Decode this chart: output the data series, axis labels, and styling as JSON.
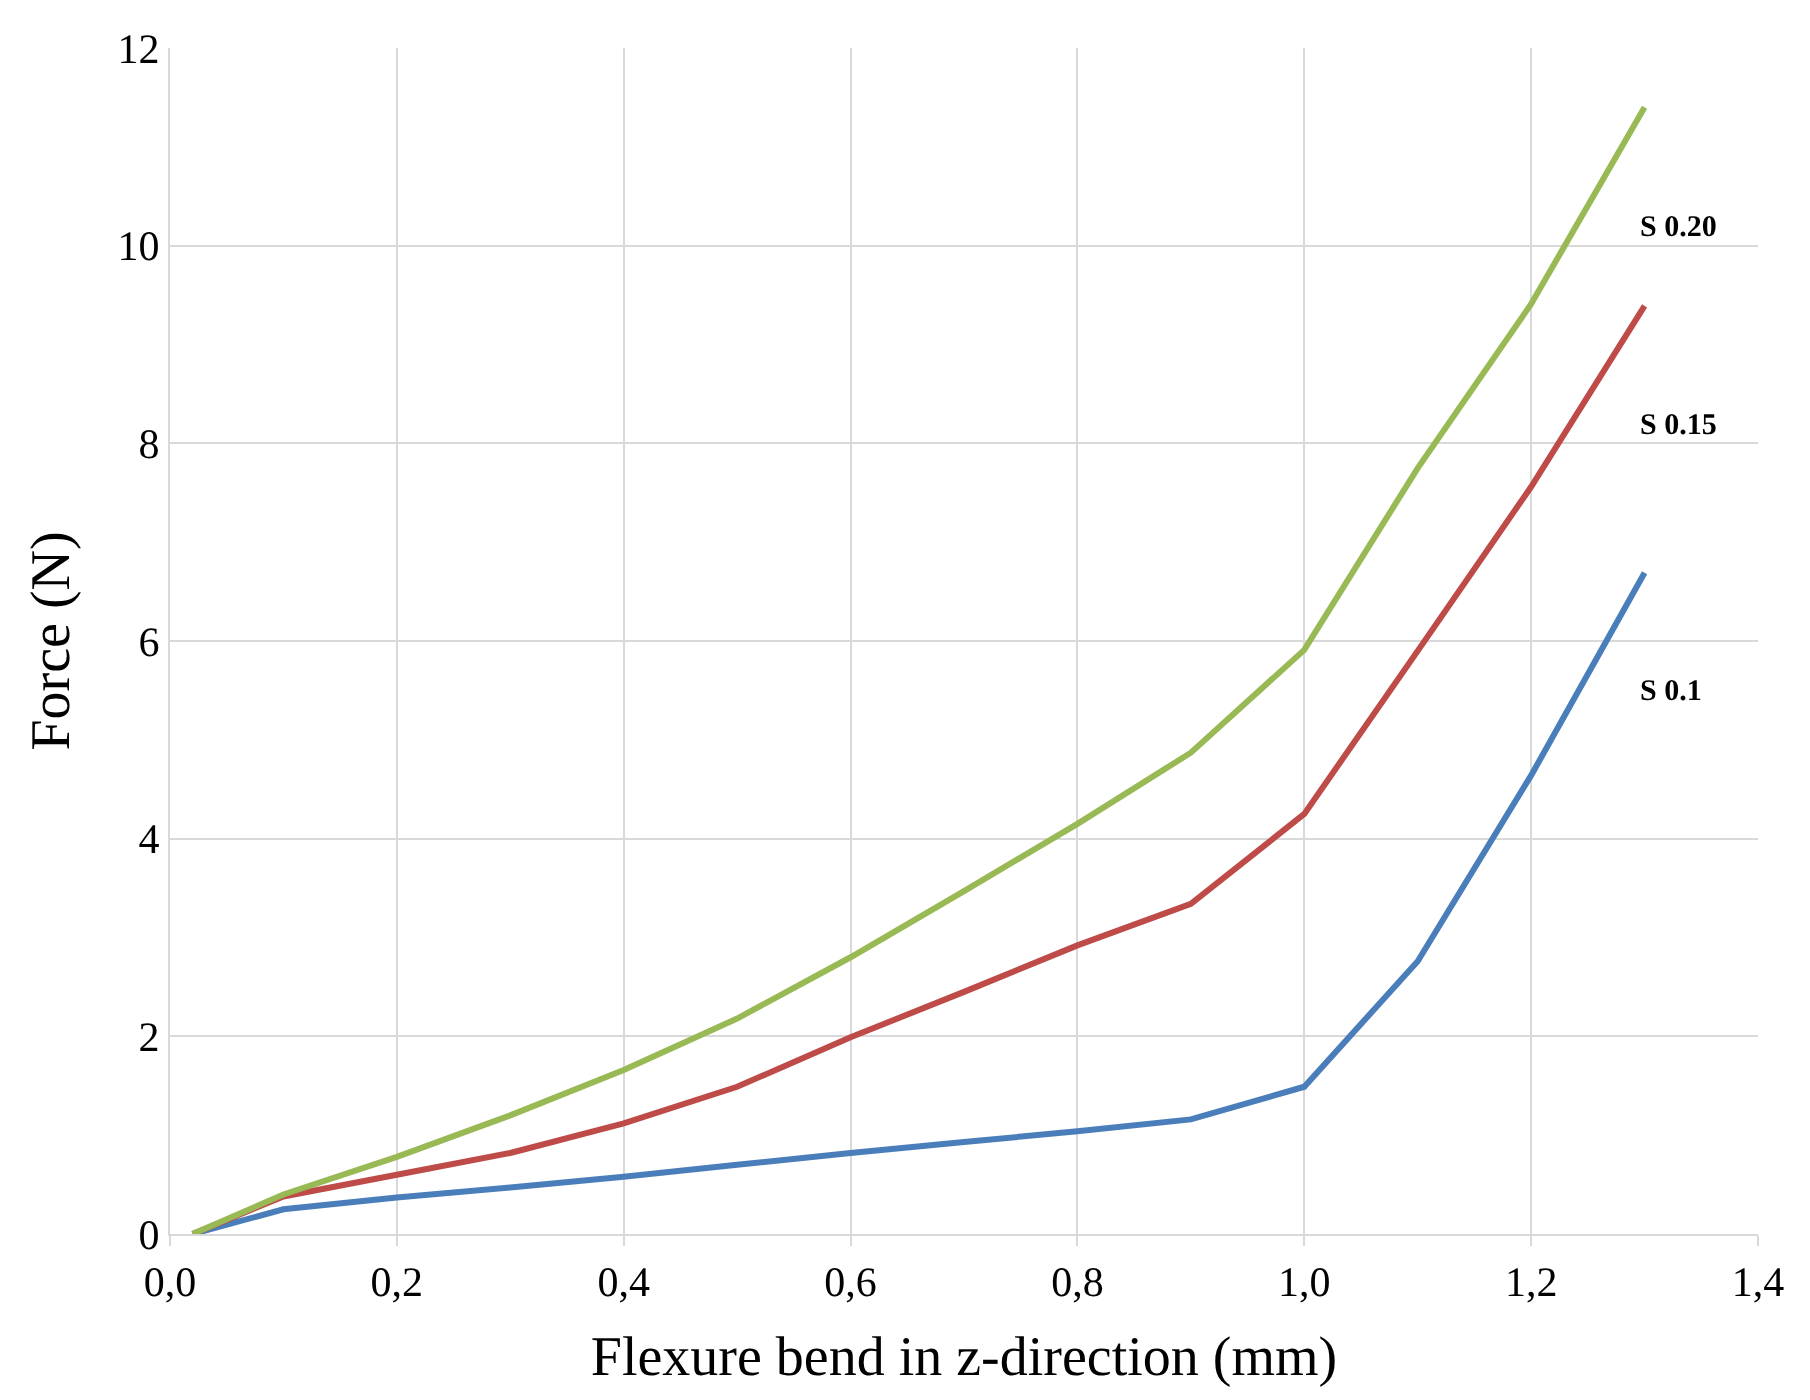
{
  "chart_data": {
    "type": "line",
    "xlabel": "Flexure bend in z-direction (mm)",
    "ylabel": "Force (N)",
    "x": [
      0.02,
      0.1,
      0.2,
      0.3,
      0.4,
      0.5,
      0.6,
      0.7,
      0.8,
      0.9,
      1.0,
      1.1,
      1.2,
      1.3
    ],
    "series": [
      {
        "name": "S 0.1",
        "color": "#4a7ebb",
        "values": [
          0,
          0.25,
          0.37,
          0.47,
          0.58,
          0.7,
          0.82,
          0.93,
          1.04,
          1.16,
          1.49,
          2.76,
          4.64,
          6.69
        ]
      },
      {
        "name": "S 0.15",
        "color": "#be4b48",
        "values": [
          0,
          0.38,
          0.6,
          0.82,
          1.12,
          1.49,
          1.99,
          2.45,
          2.92,
          3.34,
          4.25,
          5.9,
          7.56,
          9.39
        ]
      },
      {
        "name": "S 0.20",
        "color": "#98b954",
        "values": [
          0,
          0.4,
          0.78,
          1.2,
          1.66,
          2.18,
          2.8,
          3.47,
          4.15,
          4.87,
          5.91,
          7.75,
          9.41,
          11.4
        ]
      }
    ],
    "xlim": [
      0,
      1.4
    ],
    "xticks": [
      {
        "value": 0,
        "label": "0,0"
      },
      {
        "value": 0.2,
        "label": "0,2"
      },
      {
        "value": 0.4,
        "label": "0,4"
      },
      {
        "value": 0.6,
        "label": "0,6"
      },
      {
        "value": 0.8,
        "label": "0,8"
      },
      {
        "value": 1.0,
        "label": "1,0"
      },
      {
        "value": 1.2,
        "label": "1,2"
      },
      {
        "value": 1.4,
        "label": "1,4"
      }
    ],
    "ylim": [
      0,
      12
    ],
    "yticks": [
      0,
      2,
      4,
      6,
      8,
      10,
      12
    ],
    "grid": true,
    "legend": false,
    "marker": "none",
    "line_style": "solid"
  }
}
